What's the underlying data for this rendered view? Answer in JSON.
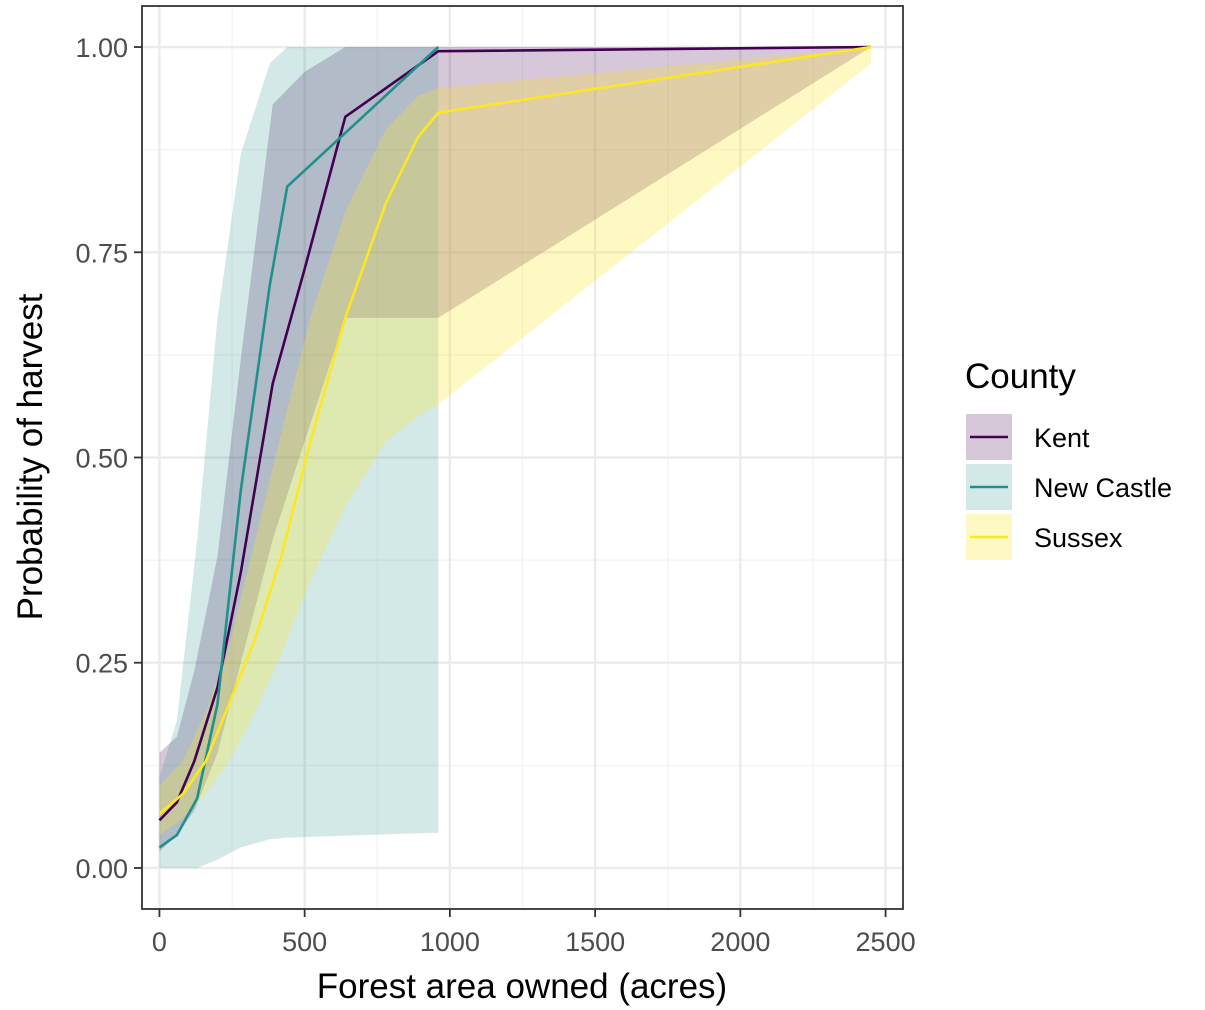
{
  "chart_data": {
    "type": "line",
    "title": "",
    "xlabel": "Forest area owned (acres)",
    "ylabel": "Probability of harvest",
    "xlim": [
      -60,
      2560
    ],
    "ylim": [
      -0.05,
      1.05
    ],
    "x_ticks": [
      {
        "value": 0,
        "label": "0"
      },
      {
        "value": 500,
        "label": "500"
      },
      {
        "value": 1000,
        "label": "1000"
      },
      {
        "value": 1500,
        "label": "1500"
      },
      {
        "value": 2000,
        "label": "2000"
      },
      {
        "value": 2500,
        "label": "2500"
      }
    ],
    "y_ticks": [
      {
        "value": 0,
        "label": "0.00"
      },
      {
        "value": 0.25,
        "label": "0.25"
      },
      {
        "value": 0.5,
        "label": "0.50"
      },
      {
        "value": 0.75,
        "label": "0.75"
      },
      {
        "value": 1,
        "label": "1.00"
      }
    ],
    "grid": true,
    "legend": {
      "title": "County",
      "position": "right"
    },
    "series": [
      {
        "name": "Kent",
        "color": "#440154",
        "ribbon_opacity": 0.22,
        "x": [
          0,
          60,
          120,
          200,
          280,
          390,
          500,
          640,
          960,
          2450
        ],
        "y": [
          0.058,
          0.08,
          0.13,
          0.22,
          0.36,
          0.59,
          0.73,
          0.915,
          0.995,
          1.0
        ],
        "lower": [
          0.02,
          0.04,
          0.07,
          0.14,
          0.25,
          0.4,
          0.52,
          0.67,
          0.67,
          1.0
        ],
        "upper": [
          0.14,
          0.16,
          0.24,
          0.38,
          0.62,
          0.93,
          0.97,
          1.0,
          1.0,
          1.0
        ]
      },
      {
        "name": "New Castle",
        "color": "#21908C",
        "ribbon_opacity": 0.2,
        "x": [
          0,
          60,
          130,
          200,
          280,
          380,
          440,
          960
        ],
        "y": [
          0.025,
          0.04,
          0.085,
          0.2,
          0.46,
          0.71,
          0.83,
          1.0
        ],
        "lower": [
          0.0,
          0.0,
          0.0,
          0.01,
          0.025,
          0.035,
          0.037,
          0.043
        ],
        "upper": [
          0.11,
          0.18,
          0.4,
          0.67,
          0.87,
          0.98,
          1.0,
          1.0
        ]
      },
      {
        "name": "Sussex",
        "color": "#FDE725",
        "ribbon_opacity": 0.28,
        "x": [
          0,
          80,
          160,
          240,
          330,
          420,
          520,
          640,
          780,
          890,
          960,
          2450
        ],
        "y": [
          0.066,
          0.09,
          0.13,
          0.2,
          0.28,
          0.38,
          0.52,
          0.67,
          0.81,
          0.89,
          0.92,
          1.0
        ],
        "lower": [
          0.04,
          0.06,
          0.09,
          0.13,
          0.19,
          0.26,
          0.35,
          0.44,
          0.52,
          0.55,
          0.565,
          0.98
        ],
        "upper": [
          0.1,
          0.13,
          0.19,
          0.27,
          0.4,
          0.53,
          0.67,
          0.8,
          0.9,
          0.94,
          0.95,
          1.0
        ]
      }
    ]
  }
}
